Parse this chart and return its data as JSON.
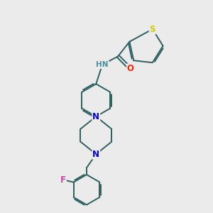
{
  "bg_color": "#ebebeb",
  "bond_color": "#2d6060",
  "bond_width": 1.4,
  "atom_colors": {
    "S": "#cccc00",
    "O": "#ff2200",
    "N": "#0000ee",
    "F": "#cc44aa",
    "H": "#4a8fa0",
    "C": "#2d6060"
  },
  "font_size": 7.5,
  "fig_size": [
    3.0,
    3.0
  ],
  "dpi": 100
}
